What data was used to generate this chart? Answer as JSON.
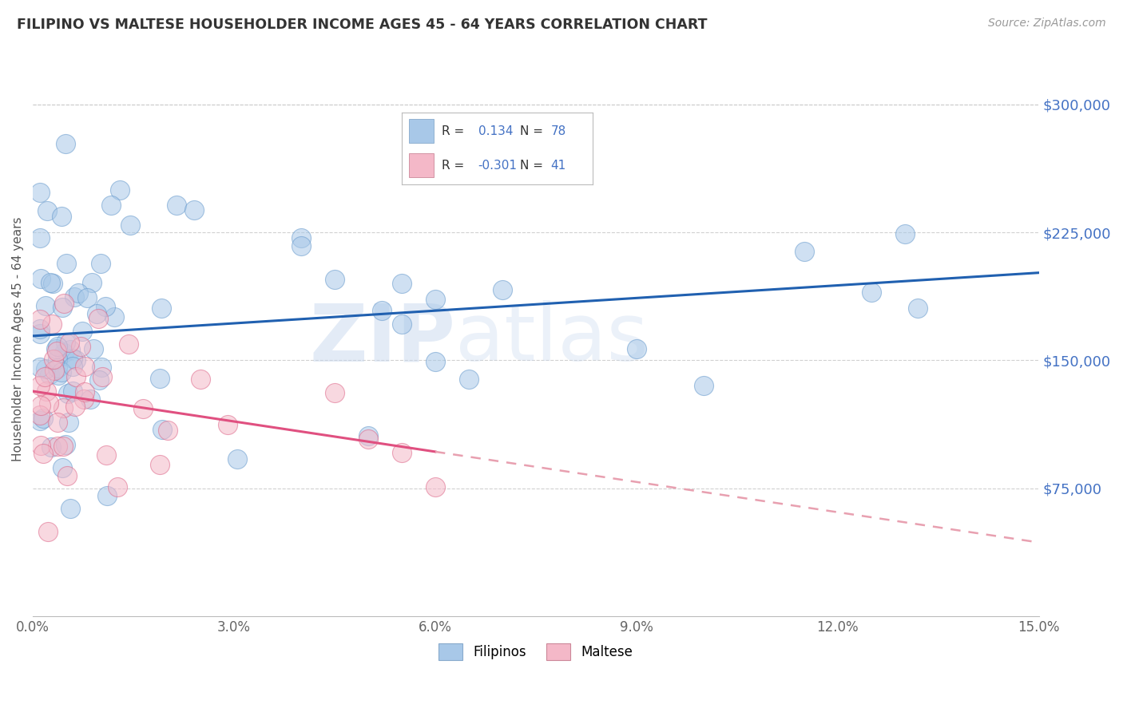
{
  "title": "FILIPINO VS MALTESE HOUSEHOLDER INCOME AGES 45 - 64 YEARS CORRELATION CHART",
  "source": "Source: ZipAtlas.com",
  "ylabel": "Householder Income Ages 45 - 64 years",
  "xlim": [
    0.0,
    0.15
  ],
  "ylim": [
    0,
    325000
  ],
  "xticks": [
    0.0,
    0.03,
    0.06,
    0.09,
    0.12,
    0.15
  ],
  "xticklabels": [
    "0.0%",
    "3.0%",
    "6.0%",
    "9.0%",
    "12.0%",
    "15.0%"
  ],
  "ytick_positions": [
    75000,
    150000,
    225000,
    300000
  ],
  "ytick_labels": [
    "$75,000",
    "$150,000",
    "$225,000",
    "$300,000"
  ],
  "filipino_color": "#a8c8e8",
  "maltese_color": "#f4b8c8",
  "trend_filipino_color": "#2060b0",
  "trend_maltese_solid_color": "#e05080",
  "trend_maltese_dash_color": "#e8a0b0",
  "R_filipino": 0.134,
  "N_filipino": 78,
  "R_maltese": -0.301,
  "N_maltese": 41,
  "watermark_zip": "ZIP",
  "watermark_atlas": "atlas",
  "background_color": "#ffffff",
  "grid_color": "#cccccc",
  "legend_labels": [
    "Filipinos",
    "Maltese"
  ],
  "title_color": "#333333",
  "source_color": "#999999",
  "ylabel_color": "#555555",
  "tick_label_color_y": "#4472C4",
  "tick_label_color_x": "#666666"
}
